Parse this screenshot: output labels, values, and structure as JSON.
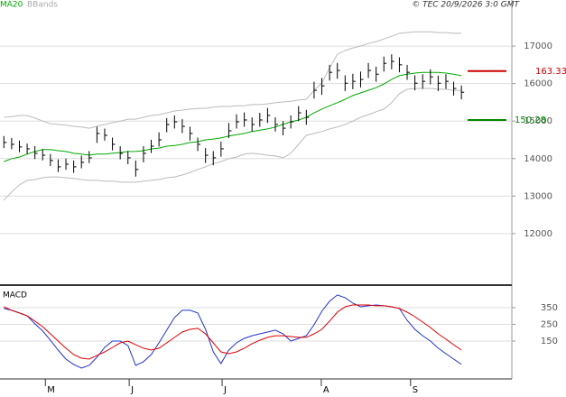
{
  "chart_data": [
    {
      "type": "ohlc",
      "annotation": "© TEC 20/9/2026 3:0 GMT",
      "x": [
        0,
        1,
        2,
        3,
        4,
        5,
        6,
        7,
        8,
        9,
        10,
        11,
        12,
        13,
        14,
        15,
        16,
        17,
        18,
        19,
        20,
        21,
        22,
        23,
        24,
        25,
        26,
        27,
        28,
        29,
        30,
        31,
        32,
        33,
        34,
        35,
        36,
        37,
        38,
        39,
        40,
        41,
        42,
        43,
        44,
        45,
        46,
        47,
        48,
        49,
        50,
        51,
        52,
        53,
        54,
        55,
        56,
        57,
        58,
        59
      ],
      "xlim": [
        -0.5,
        65.5
      ],
      "ylim": [
        10650,
        17940
      ],
      "yticks": [
        12000,
        13000,
        14000,
        15000,
        16000,
        17000
      ],
      "grid": true,
      "bar_color": "#000000",
      "hlc": [
        [
          14600,
          14280,
          14430
        ],
        [
          14550,
          14250,
          14380
        ],
        [
          14480,
          14170,
          14310
        ],
        [
          14400,
          14120,
          14260
        ],
        [
          14330,
          13990,
          14140
        ],
        [
          14250,
          13950,
          14090
        ],
        [
          14120,
          13800,
          13950
        ],
        [
          13980,
          13640,
          13780
        ],
        [
          14000,
          13700,
          13850
        ],
        [
          13950,
          13620,
          13780
        ],
        [
          14080,
          13740,
          13900
        ],
        [
          14200,
          13880,
          14020
        ],
        [
          14850,
          14420,
          14670
        ],
        [
          14800,
          14480,
          14620
        ],
        [
          14560,
          14220,
          14380
        ],
        [
          14330,
          13980,
          14140
        ],
        [
          14200,
          13850,
          14020
        ],
        [
          13950,
          13520,
          13710
        ],
        [
          14330,
          13900,
          14140
        ],
        [
          14500,
          14150,
          14330
        ],
        [
          14700,
          14320,
          14500
        ],
        [
          15080,
          14700,
          14910
        ],
        [
          15150,
          14800,
          14980
        ],
        [
          15050,
          14680,
          14860
        ],
        [
          14850,
          14480,
          14670
        ],
        [
          14560,
          14200,
          14380
        ],
        [
          14280,
          13880,
          14090
        ],
        [
          14200,
          13820,
          14020
        ],
        [
          14450,
          14050,
          14260
        ],
        [
          14950,
          14550,
          14740
        ],
        [
          15180,
          14800,
          14980
        ],
        [
          15230,
          14850,
          15030
        ],
        [
          15100,
          14720,
          14910
        ],
        [
          15220,
          14850,
          15030
        ],
        [
          15350,
          14950,
          15150
        ],
        [
          15100,
          14720,
          14910
        ],
        [
          15000,
          14620,
          14810
        ],
        [
          15150,
          14800,
          14980
        ],
        [
          15400,
          15000,
          15220
        ],
        [
          15300,
          14900,
          15100
        ],
        [
          16050,
          15600,
          15820
        ],
        [
          16150,
          15700,
          15940
        ],
        [
          16500,
          16080,
          16300
        ],
        [
          16550,
          16130,
          16350
        ],
        [
          16220,
          15800,
          16010
        ],
        [
          16260,
          15850,
          16060
        ],
        [
          16320,
          15900,
          16110
        ],
        [
          16550,
          16150,
          16350
        ],
        [
          16450,
          16050,
          16250
        ],
        [
          16720,
          16320,
          16540
        ],
        [
          16780,
          16380,
          16590
        ],
        [
          16700,
          16300,
          16500
        ],
        [
          16500,
          16100,
          16300
        ],
        [
          16220,
          15820,
          16010
        ],
        [
          16250,
          15860,
          16060
        ],
        [
          16380,
          15980,
          16180
        ],
        [
          16210,
          15800,
          16010
        ],
        [
          16250,
          15860,
          16060
        ],
        [
          16050,
          15680,
          15870
        ],
        [
          15950,
          15580,
          15770
        ]
      ],
      "series": [
        {
          "name": "MA20",
          "color": "#00aa00",
          "values": [
            13920,
            14000,
            14040,
            14120,
            14190,
            14240,
            14240,
            14210,
            14190,
            14140,
            14120,
            14090,
            14120,
            14120,
            14140,
            14160,
            14190,
            14190,
            14210,
            14260,
            14280,
            14330,
            14350,
            14380,
            14430,
            14450,
            14500,
            14520,
            14550,
            14600,
            14640,
            14670,
            14720,
            14760,
            14790,
            14840,
            14910,
            14980,
            15030,
            15100,
            15220,
            15320,
            15410,
            15490,
            15580,
            15680,
            15750,
            15820,
            15890,
            15990,
            16110,
            16210,
            16250,
            16280,
            16300,
            16300,
            16300,
            16280,
            16250,
            16210
          ]
        },
        {
          "name": "BBands",
          "color": "#bbbbbb",
          "upper": [
            15100,
            15120,
            15150,
            15150,
            15080,
            15000,
            14930,
            14910,
            14890,
            14860,
            14840,
            14810,
            14860,
            14910,
            14960,
            15000,
            15050,
            15050,
            15100,
            15150,
            15170,
            15220,
            15270,
            15290,
            15320,
            15340,
            15340,
            15370,
            15390,
            15390,
            15410,
            15410,
            15440,
            15440,
            15460,
            15490,
            15510,
            15530,
            15560,
            15580,
            15820,
            16010,
            16420,
            16780,
            16880,
            16950,
            17000,
            17070,
            17120,
            17190,
            17260,
            17340,
            17360,
            17380,
            17380,
            17380,
            17360,
            17360,
            17340,
            17340
          ],
          "lower": [
            12890,
            13110,
            13300,
            13420,
            13440,
            13490,
            13510,
            13510,
            13490,
            13470,
            13440,
            13420,
            13420,
            13400,
            13400,
            13370,
            13370,
            13370,
            13400,
            13420,
            13440,
            13490,
            13510,
            13560,
            13630,
            13710,
            13780,
            13870,
            13920,
            14000,
            14040,
            14120,
            14140,
            14120,
            14090,
            14070,
            14020,
            14140,
            14380,
            14620,
            14670,
            14720,
            14790,
            14840,
            14910,
            15000,
            15100,
            15170,
            15250,
            15320,
            15490,
            15730,
            15850,
            15870,
            15870,
            15870,
            15850,
            15850,
            15820,
            15820
          ]
        }
      ],
      "levels": [
        {
          "value": 16333,
          "label": "163.33",
          "color": "#cc0000"
        },
        {
          "value": 15028,
          "label": "150.28",
          "color": "#008800"
        }
      ]
    },
    {
      "type": "line",
      "title": "MACD",
      "x": [
        0,
        1,
        2,
        3,
        4,
        5,
        6,
        7,
        8,
        9,
        10,
        11,
        12,
        13,
        14,
        15,
        16,
        17,
        18,
        19,
        20,
        21,
        22,
        23,
        24,
        25,
        26,
        27,
        28,
        29,
        30,
        31,
        32,
        33,
        34,
        35,
        36,
        37,
        38,
        39,
        40,
        41,
        42,
        43,
        44,
        45,
        46,
        47,
        48,
        49,
        50,
        51,
        52,
        53,
        54,
        55,
        56,
        57,
        58,
        59
      ],
      "xlim": [
        -0.5,
        65.5
      ],
      "ylim": [
        -77,
        474
      ],
      "yticks": [
        150,
        250,
        350
      ],
      "grid": true,
      "xticks": [
        {
          "value": 5.35,
          "label": "M"
        },
        {
          "value": 16.16,
          "label": "J"
        },
        {
          "value": 28.14,
          "label": "J"
        },
        {
          "value": 40.93,
          "label": "A"
        },
        {
          "value": 52.44,
          "label": "S"
        }
      ],
      "series": [
        {
          "color": "#2233cc",
          "values": [
            345,
            334,
            318,
            301,
            253,
            210,
            155,
            96,
            42,
            10,
            -12,
            4,
            53,
            112,
            150,
            150,
            123,
            4,
            26,
            69,
            139,
            215,
            291,
            334,
            334,
            318,
            220,
            85,
            15,
            96,
            139,
            166,
            182,
            193,
            204,
            215,
            193,
            150,
            166,
            182,
            247,
            328,
            388,
            426,
            409,
            377,
            355,
            361,
            366,
            361,
            355,
            345,
            274,
            220,
            182,
            150,
            107,
            74,
            42,
            10
          ]
        },
        {
          "color": "#dd0000",
          "values": [
            355,
            334,
            318,
            301,
            269,
            236,
            193,
            150,
            107,
            69,
            47,
            42,
            64,
            85,
            112,
            139,
            150,
            128,
            107,
            96,
            107,
            139,
            172,
            204,
            220,
            226,
            193,
            139,
            85,
            74,
            85,
            107,
            134,
            155,
            172,
            182,
            182,
            177,
            172,
            172,
            193,
            220,
            269,
            323,
            355,
            366,
            366,
            366,
            361,
            361,
            355,
            345,
            323,
            296,
            264,
            231,
            193,
            161,
            128,
            96
          ]
        }
      ]
    }
  ]
}
